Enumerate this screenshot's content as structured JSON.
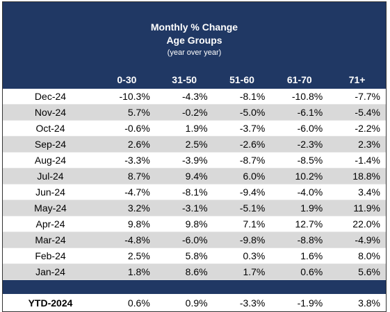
{
  "header": {
    "title": "Monthly % Change",
    "subtitle": "Age Groups",
    "note": "(year over year)"
  },
  "table": {
    "columns": [
      "0-30",
      "31-50",
      "51-60",
      "61-70",
      "71+"
    ],
    "rows": [
      {
        "label": "Dec-24",
        "values": [
          "-10.3%",
          "-4.3%",
          "-8.1%",
          "-10.8%",
          "-7.7%"
        ]
      },
      {
        "label": "Nov-24",
        "values": [
          "5.7%",
          "-0.2%",
          "-5.0%",
          "-6.1%",
          "-5.4%"
        ]
      },
      {
        "label": "Oct-24",
        "values": [
          "-0.6%",
          "1.9%",
          "-3.7%",
          "-6.0%",
          "-2.2%"
        ]
      },
      {
        "label": "Sep-24",
        "values": [
          "2.6%",
          "2.5%",
          "-2.6%",
          "-2.3%",
          "2.3%"
        ]
      },
      {
        "label": "Aug-24",
        "values": [
          "-3.3%",
          "-3.9%",
          "-8.7%",
          "-8.5%",
          "-1.4%"
        ]
      },
      {
        "label": "Jul-24",
        "values": [
          "8.7%",
          "9.4%",
          "6.0%",
          "10.2%",
          "18.8%"
        ]
      },
      {
        "label": "Jun-24",
        "values": [
          "-4.7%",
          "-8.1%",
          "-9.4%",
          "-4.0%",
          "3.4%"
        ]
      },
      {
        "label": "May-24",
        "values": [
          "3.2%",
          "-3.1%",
          "-5.1%",
          "1.9%",
          "11.9%"
        ]
      },
      {
        "label": "Apr-24",
        "values": [
          "9.8%",
          "9.8%",
          "7.1%",
          "12.7%",
          "22.0%"
        ]
      },
      {
        "label": "Mar-24",
        "values": [
          "-4.8%",
          "-6.0%",
          "-9.8%",
          "-8.8%",
          "-4.9%"
        ]
      },
      {
        "label": "Feb-24",
        "values": [
          "2.5%",
          "5.8%",
          "0.3%",
          "1.6%",
          "8.0%"
        ]
      },
      {
        "label": "Jan-24",
        "values": [
          "1.8%",
          "8.6%",
          "1.7%",
          "0.6%",
          "5.6%"
        ]
      }
    ],
    "total": {
      "label": "YTD-2024",
      "values": [
        "0.6%",
        "0.9%",
        "-3.3%",
        "-1.9%",
        "3.8%"
      ]
    }
  }
}
